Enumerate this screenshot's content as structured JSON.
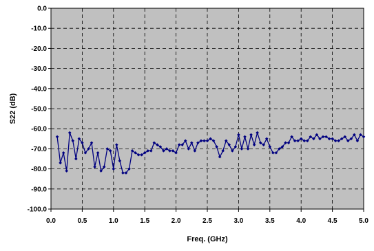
{
  "chart_data": {
    "type": "line",
    "title": "",
    "xlabel": "Freq. (GHz)",
    "ylabel": "S22 (dB)",
    "xlim": [
      0.0,
      5.0
    ],
    "ylim": [
      -100.0,
      0.0
    ],
    "x_ticks": [
      "0.0",
      "0.5",
      "1.0",
      "1.5",
      "2.0",
      "2.5",
      "3.0",
      "3.5",
      "4.0",
      "4.5",
      "5.0"
    ],
    "y_ticks": [
      "0.0",
      "-10.0",
      "-20.0",
      "-30.0",
      "-40.0",
      "-50.0",
      "-60.0",
      "-70.0",
      "-80.0",
      "-90.0",
      "-100.0"
    ],
    "grid": true,
    "grid_style": "dashed",
    "legend": "none",
    "colors": {
      "plot_background": "#c0c0c0",
      "series": "#000080",
      "grid": "#000000"
    },
    "series": [
      {
        "marker": "diamond",
        "x": [
          0.1,
          0.15,
          0.2,
          0.25,
          0.3,
          0.35,
          0.4,
          0.45,
          0.5,
          0.55,
          0.6,
          0.65,
          0.7,
          0.75,
          0.8,
          0.85,
          0.9,
          0.95,
          1.0,
          1.05,
          1.1,
          1.15,
          1.2,
          1.25,
          1.3,
          1.35,
          1.4,
          1.45,
          1.5,
          1.55,
          1.6,
          1.65,
          1.7,
          1.75,
          1.8,
          1.85,
          1.9,
          1.95,
          2.0,
          2.05,
          2.1,
          2.15,
          2.2,
          2.25,
          2.3,
          2.35,
          2.4,
          2.45,
          2.5,
          2.55,
          2.6,
          2.65,
          2.7,
          2.75,
          2.8,
          2.85,
          2.9,
          2.95,
          3.0,
          3.05,
          3.1,
          3.15,
          3.2,
          3.25,
          3.3,
          3.35,
          3.4,
          3.45,
          3.5,
          3.55,
          3.6,
          3.65,
          3.7,
          3.75,
          3.8,
          3.85,
          3.9,
          3.95,
          4.0,
          4.05,
          4.1,
          4.15,
          4.2,
          4.25,
          4.3,
          4.35,
          4.4,
          4.45,
          4.5,
          4.55,
          4.6,
          4.65,
          4.7,
          4.75,
          4.8,
          4.85,
          4.9,
          4.95,
          5.0
        ],
        "y": [
          -64,
          -77,
          -72,
          -81,
          -62,
          -66,
          -75,
          -65,
          -67,
          -72,
          -70,
          -67,
          -79,
          -72,
          -81,
          -79,
          -70,
          -71,
          -80,
          -68,
          -76,
          -82,
          -82,
          -80,
          -71,
          -72,
          -73,
          -73,
          -72,
          -71,
          -71,
          -67,
          -68,
          -69,
          -71,
          -70,
          -71,
          -71,
          -72,
          -68,
          -68,
          -66,
          -70,
          -67,
          -71,
          -67,
          -66,
          -66,
          -66,
          -65,
          -66,
          -69,
          -74,
          -71,
          -66,
          -68,
          -71,
          -69,
          -63,
          -70,
          -64,
          -70,
          -63,
          -68,
          -62,
          -67,
          -68,
          -65,
          -69,
          -72,
          -72,
          -70,
          -69,
          -67,
          -67,
          -64,
          -66,
          -66,
          -65,
          -66,
          -66,
          -64,
          -65,
          -63,
          -65,
          -64,
          -64,
          -65,
          -65,
          -66,
          -66,
          -65,
          -64,
          -66,
          -65,
          -63,
          -66,
          -63,
          -64
        ]
      }
    ]
  }
}
